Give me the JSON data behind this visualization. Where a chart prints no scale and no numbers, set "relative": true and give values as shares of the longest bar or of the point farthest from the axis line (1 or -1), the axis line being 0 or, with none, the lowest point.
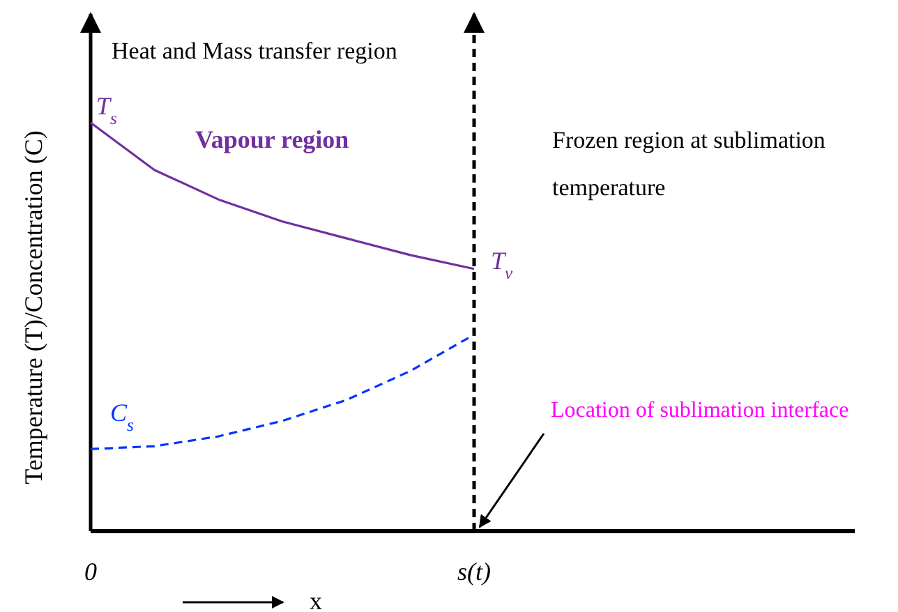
{
  "chart_data": {
    "type": "line",
    "relative": true,
    "xlabel": "x",
    "ylabel": "Temperature (T)/Concentration (C)",
    "categories": [
      "0",
      null,
      null,
      null,
      null,
      null,
      "s(t)"
    ],
    "series": [
      {
        "color": "#7030a0",
        "line_style": "solid",
        "values": [
          1.0,
          0.884,
          0.812,
          0.758,
          0.717,
          0.676,
          0.642
        ]
      },
      {
        "color": "#0033ff",
        "line_style": "dashed",
        "values": [
          0.201,
          0.208,
          0.232,
          0.27,
          0.321,
          0.392,
          0.481
        ]
      }
    ],
    "ref_lines": [
      {
        "axis": "x",
        "value": "s(t)",
        "color": "#000000",
        "line_style": "dashed"
      }
    ],
    "annotations": [
      "Heat and Mass transfer region",
      "Vapour region",
      "Frozen region at sublimation temperature",
      {
        "text": "T$_{s}$",
        "x": "0",
        "y": 1
      },
      {
        "text": "T$_{v}$",
        "x": "s(t)",
        "y": 0.642
      },
      {
        "text": "C$_{s}$",
        "x": "0",
        "y": 0.201
      },
      {
        "text": "Location of sublimation interface",
        "x": "s(t)",
        "y": 0
      }
    ],
    "grid": false
  }
}
